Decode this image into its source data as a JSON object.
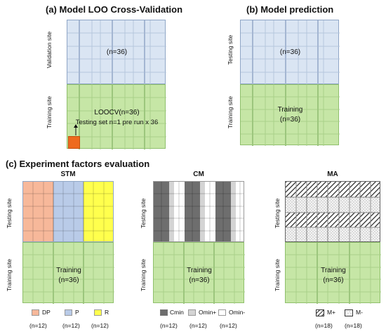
{
  "panels": {
    "a": {
      "title": "(a) Model LOO Cross-Validation",
      "top_label": "Validation site",
      "bottom_label": "Training site",
      "top_count": "(n=36)",
      "bottom_line1": "LOOCV(n=36)",
      "bottom_line2": "Testing set n=1 pre run x 36"
    },
    "b": {
      "title": "(b) Model prediction",
      "top_label": "Testing site",
      "bottom_label": "Training site",
      "top_count": "(n=36)",
      "bottom_line1": "Training",
      "bottom_line2": "(n=36)"
    },
    "c": {
      "title": "(c) Experiment factors evaluation",
      "stm": {
        "title": "STM",
        "top_label": "Testing site",
        "bottom_label": "Training site",
        "bottom_line1": "Training",
        "bottom_line2": "(n=36)",
        "legend": [
          {
            "label": "DP",
            "count": "(n=12)",
            "color": "#f7b89a"
          },
          {
            "label": "P",
            "count": "(n=12)",
            "color": "#b9cbe8"
          },
          {
            "label": "R",
            "count": "(n=12)",
            "color": "#ffff4d"
          }
        ]
      },
      "cm": {
        "title": "CM",
        "top_label": "Testing site",
        "bottom_label": "Training site",
        "bottom_line1": "Training",
        "bottom_line2": "(n=36)",
        "legend": [
          {
            "label": "Cmin",
            "count": "(n=12)",
            "color": "#6e6e6e"
          },
          {
            "label": "Omin+",
            "count": "(n=12)",
            "color": "#d4d4d4"
          },
          {
            "label": "Omin-",
            "count": "(n=12)",
            "color": "#ffffff"
          }
        ]
      },
      "ma": {
        "title": "MA",
        "top_label": "Testing site",
        "bottom_label": "Training site",
        "bottom_line1": "Training",
        "bottom_line2": "(n=36)",
        "legend": [
          {
            "label": "M+",
            "count": "(n=18)",
            "pattern": "hatch"
          },
          {
            "label": "M-",
            "count": "(n=18)",
            "pattern": "dots"
          }
        ]
      }
    }
  },
  "colors": {
    "validation_blue": "#dae5f3",
    "training_green": "#c6e6a6",
    "grid_line": "#b6c6dc",
    "grid_line_green": "#a9d089",
    "highlight": "#ee6a1e"
  }
}
